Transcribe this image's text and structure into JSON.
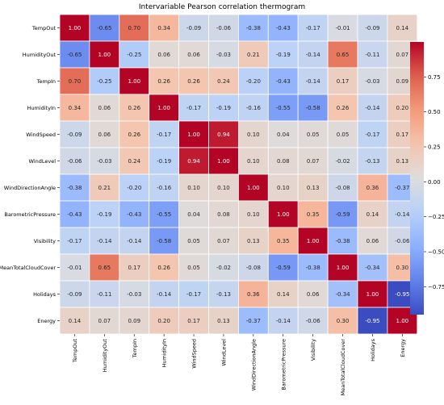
{
  "chart_data": {
    "type": "heatmap",
    "title": "Intervariable Pearson correlation thermogram",
    "variables": [
      "TempOut",
      "HumidityOut",
      "TempIn",
      "HumidityIn",
      "WindSpeed",
      "WindLevel",
      "WindDirectionAngle",
      "BarometricPressure",
      "Visibility",
      "MeanTotalCloudCover",
      "Holidays",
      "Energy"
    ],
    "matrix": [
      [
        1.0,
        -0.65,
        0.7,
        0.34,
        -0.09,
        -0.06,
        -0.38,
        -0.43,
        -0.17,
        -0.01,
        -0.09,
        0.14
      ],
      [
        -0.65,
        1.0,
        -0.25,
        0.06,
        0.06,
        -0.03,
        0.21,
        -0.19,
        -0.14,
        0.65,
        -0.11,
        0.07
      ],
      [
        0.7,
        -0.25,
        1.0,
        0.26,
        0.26,
        0.24,
        -0.2,
        -0.43,
        -0.14,
        0.17,
        -0.03,
        0.09
      ],
      [
        0.34,
        0.06,
        0.26,
        1.0,
        -0.17,
        -0.19,
        -0.16,
        -0.55,
        -0.58,
        0.26,
        -0.14,
        0.2
      ],
      [
        -0.09,
        0.06,
        0.26,
        -0.17,
        1.0,
        0.94,
        0.1,
        0.04,
        0.05,
        0.05,
        -0.17,
        0.17
      ],
      [
        -0.06,
        -0.03,
        0.24,
        -0.19,
        0.94,
        1.0,
        0.1,
        0.08,
        0.07,
        -0.02,
        -0.13,
        0.13
      ],
      [
        -0.38,
        0.21,
        -0.2,
        -0.16,
        0.1,
        0.1,
        1.0,
        0.1,
        0.13,
        -0.08,
        0.36,
        -0.37
      ],
      [
        -0.43,
        -0.19,
        -0.43,
        -0.55,
        0.04,
        0.08,
        0.1,
        1.0,
        0.35,
        -0.59,
        0.14,
        -0.14
      ],
      [
        -0.17,
        -0.14,
        -0.14,
        -0.58,
        0.05,
        0.07,
        0.13,
        0.35,
        1.0,
        -0.38,
        0.06,
        -0.06
      ],
      [
        -0.01,
        0.65,
        0.17,
        0.26,
        0.05,
        -0.02,
        -0.08,
        -0.59,
        -0.38,
        1.0,
        -0.34,
        0.3
      ],
      [
        -0.09,
        -0.11,
        -0.03,
        -0.14,
        -0.17,
        -0.13,
        0.36,
        0.14,
        0.06,
        -0.34,
        1.0,
        -0.95
      ],
      [
        0.14,
        0.07,
        0.09,
        0.2,
        0.17,
        0.13,
        -0.37,
        -0.14,
        -0.06,
        0.3,
        -0.95,
        1.0
      ]
    ],
    "value_format": "2 decimals",
    "colormap": "coolwarm",
    "vmin": -0.95,
    "vmax": 1.0,
    "colorbar": {
      "ticks": [
        0.75,
        0.5,
        0.25,
        0.0,
        -0.25,
        -0.5,
        -0.75
      ],
      "tick_labels": [
        "0.75",
        "0.50",
        "0.25",
        "0.00",
        "−0.25",
        "−0.50",
        "−0.75"
      ],
      "placement": "right"
    },
    "colors": {
      "low": "#3b4cc0",
      "mid": "#dddddd",
      "high": "#b40426"
    }
  }
}
